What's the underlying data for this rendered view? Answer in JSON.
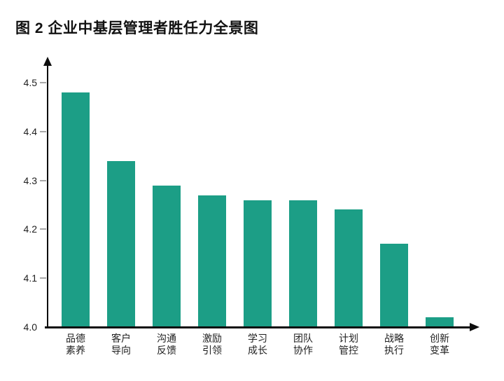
{
  "title": "图 2 企业中基层管理者胜任力全景图",
  "chart_data": {
    "type": "bar",
    "title": "图 2 企业中基层管理者胜任力全景图",
    "categories": [
      "品德素养",
      "客户导向",
      "沟通反馈",
      "激励引领",
      "学习成长",
      "团队协作",
      "计划管控",
      "战略执行",
      "创新变革"
    ],
    "values": [
      4.48,
      4.34,
      4.29,
      4.27,
      4.26,
      4.26,
      4.24,
      4.17,
      4.02
    ],
    "xlabel": "",
    "ylabel": "",
    "ylim": [
      4.0,
      4.5
    ],
    "yticks": [
      4.0,
      4.1,
      4.2,
      4.3,
      4.4,
      4.5
    ],
    "ytick_labels": [
      "4.0",
      "4.1",
      "4.2",
      "4.3",
      "4.4",
      "4.5"
    ],
    "grid": false,
    "legend": "none",
    "bar_color": "#1c9e86",
    "axis_color": "#0d0d0d",
    "tick_mark_color": "#a8a8a8",
    "text_color": "#1f1f1f"
  }
}
